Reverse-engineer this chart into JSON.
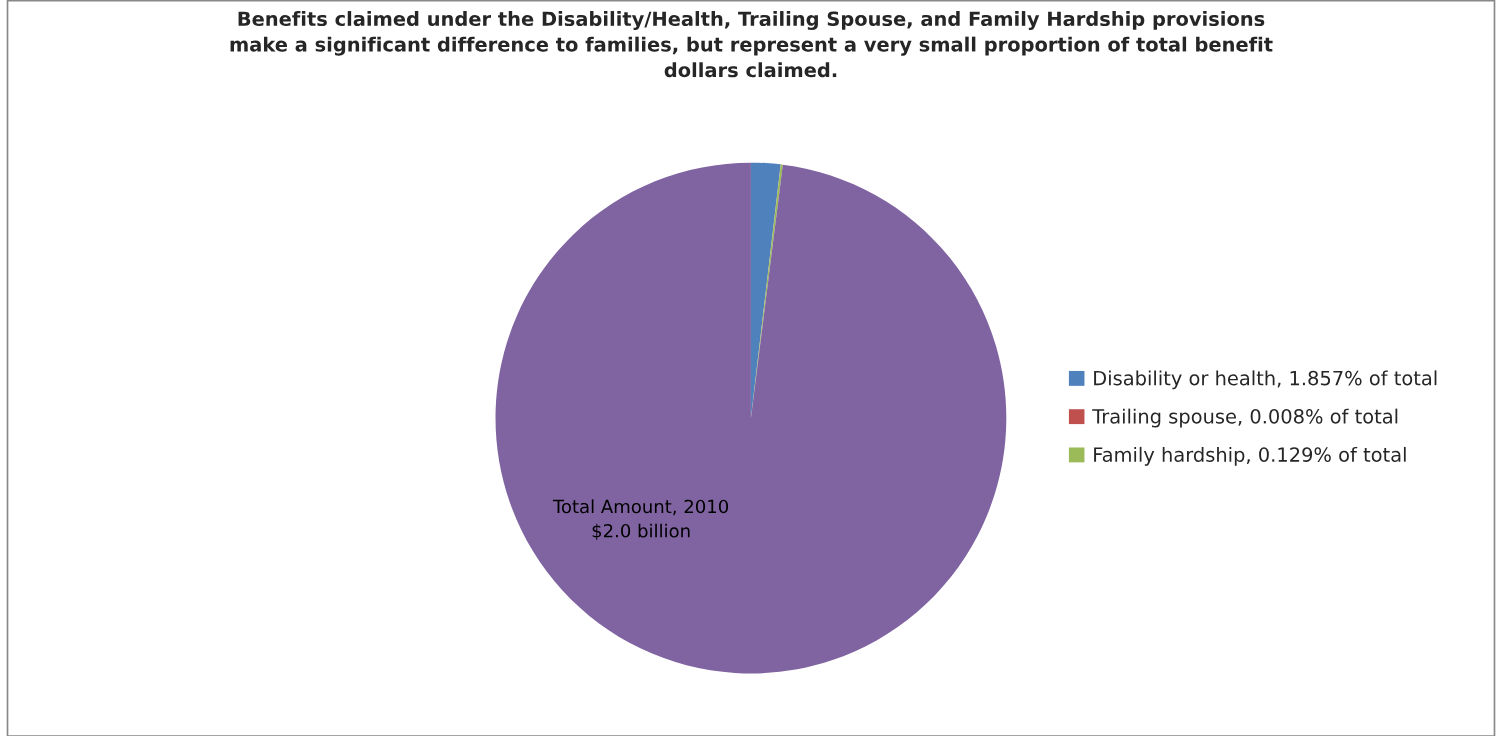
{
  "chart_data": {
    "type": "pie",
    "title": "Benefits claimed under the Disability/Health, Trailing Spouse, and Family Hardship provisions\nmake a significant difference to families, but represent a very small proportion of total benefit\ndollars claimed.",
    "categories": [
      "Disability or health, 1.857% of total",
      "Trailing spouse, 0.008% of total",
      "Family hardship, 0.129% of total",
      null
    ],
    "values": [
      1.857,
      0.008,
      0.129,
      98.006
    ],
    "colors": [
      "#4f81bd",
      "#c0504d",
      "#9bbb59",
      "#8064a2"
    ],
    "value_labels": [
      null,
      null,
      null,
      "Total Amount, 2010\n$2.0 billion"
    ],
    "legend": "right"
  }
}
